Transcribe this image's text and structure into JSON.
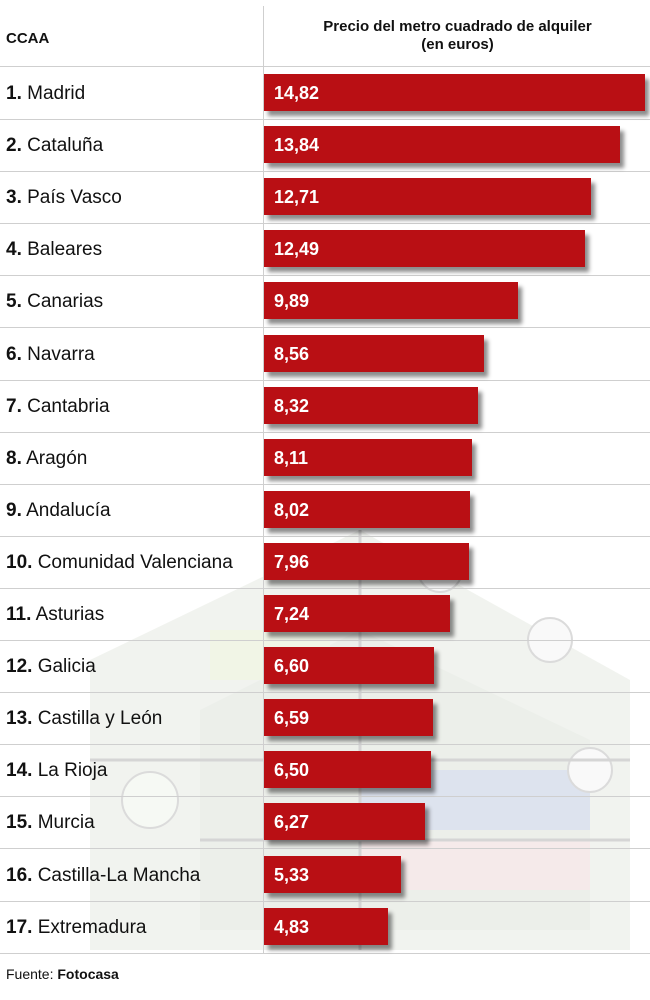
{
  "header": {
    "column_label": "CCAA",
    "title_line1": "Precio del metro cuadrado de alquiler",
    "title_line2": "(en euros)"
  },
  "chart_data": {
    "type": "bar",
    "orientation": "horizontal",
    "title": "Precio del metro cuadrado de alquiler (en euros)",
    "xlabel": "",
    "ylabel": "CCAA",
    "xlim": [
      0,
      14.82
    ],
    "grid": false,
    "bar_color": "#b90f14",
    "rows": [
      {
        "rank": "1.",
        "name": "Madrid",
        "value": 14.82,
        "label": "14,82"
      },
      {
        "rank": "2.",
        "name": "Cataluña",
        "value": 13.84,
        "label": "13,84"
      },
      {
        "rank": "3.",
        "name": "País Vasco",
        "value": 12.71,
        "label": "12,71"
      },
      {
        "rank": "4.",
        "name": "Baleares",
        "value": 12.49,
        "label": "12,49"
      },
      {
        "rank": "5.",
        "name": "Canarias",
        "value": 9.89,
        "label": "9,89"
      },
      {
        "rank": "6.",
        "name": "Navarra",
        "value": 8.56,
        "label": "8,56"
      },
      {
        "rank": "7.",
        "name": "Cantabria",
        "value": 8.32,
        "label": "8,32"
      },
      {
        "rank": "8.",
        "name": "Aragón",
        "value": 8.11,
        "label": "8,11"
      },
      {
        "rank": "9.",
        "name": "Andalucía",
        "value": 8.02,
        "label": "8,02"
      },
      {
        "rank": "10.",
        "name": "Comunidad Valenciana",
        "value": 7.96,
        "label": "7,96"
      },
      {
        "rank": "11.",
        "name": "Asturias",
        "value": 7.24,
        "label": "7,24"
      },
      {
        "rank": "12.",
        "name": "Galicia",
        "value": 6.6,
        "label": "6,60"
      },
      {
        "rank": "13.",
        "name": "Castilla y León",
        "value": 6.59,
        "label": "6,59"
      },
      {
        "rank": "14.",
        "name": "La Rioja",
        "value": 6.5,
        "label": "6,50"
      },
      {
        "rank": "15.",
        "name": "Murcia",
        "value": 6.27,
        "label": "6,27"
      },
      {
        "rank": "16.",
        "name": "Castilla-La Mancha",
        "value": 5.33,
        "label": "5,33"
      },
      {
        "rank": "17.",
        "name": "Extremadura",
        "value": 4.83,
        "label": "4,83"
      }
    ]
  },
  "source": {
    "prefix": "Fuente:",
    "name": "Fotocasa"
  }
}
